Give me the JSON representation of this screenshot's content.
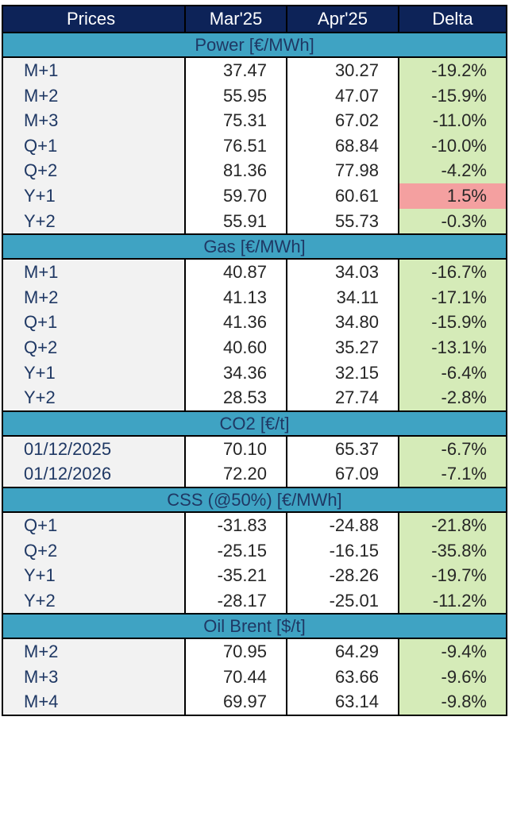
{
  "header": {
    "label": "Prices",
    "col1": "Mar'25",
    "col2": "Apr'25",
    "col3": "Delta"
  },
  "colors": {
    "header_bg": "#0d2358",
    "section_bg": "#3fa3c3",
    "negative_delta_bg": "#d5ebb8",
    "positive_delta_bg": "#f4a0a0"
  },
  "sections": [
    {
      "title": "Power [€/MWh]",
      "rows": [
        {
          "label": "M+1",
          "mar": "37.47",
          "apr": "30.27",
          "delta": "-19.2%",
          "sign": "neg"
        },
        {
          "label": "M+2",
          "mar": "55.95",
          "apr": "47.07",
          "delta": "-15.9%",
          "sign": "neg"
        },
        {
          "label": "M+3",
          "mar": "75.31",
          "apr": "67.02",
          "delta": "-11.0%",
          "sign": "neg"
        },
        {
          "label": "Q+1",
          "mar": "76.51",
          "apr": "68.84",
          "delta": "-10.0%",
          "sign": "neg"
        },
        {
          "label": "Q+2",
          "mar": "81.36",
          "apr": "77.98",
          "delta": "-4.2%",
          "sign": "neg"
        },
        {
          "label": "Y+1",
          "mar": "59.70",
          "apr": "60.61",
          "delta": "1.5%",
          "sign": "pos"
        },
        {
          "label": "Y+2",
          "mar": "55.91",
          "apr": "55.73",
          "delta": "-0.3%",
          "sign": "neg"
        }
      ]
    },
    {
      "title": "Gas [€/MWh]",
      "rows": [
        {
          "label": "M+1",
          "mar": "40.87",
          "apr": "34.03",
          "delta": "-16.7%",
          "sign": "neg"
        },
        {
          "label": "M+2",
          "mar": "41.13",
          "apr": "34.11",
          "delta": "-17.1%",
          "sign": "neg"
        },
        {
          "label": "Q+1",
          "mar": "41.36",
          "apr": "34.80",
          "delta": "-15.9%",
          "sign": "neg"
        },
        {
          "label": "Q+2",
          "mar": "40.60",
          "apr": "35.27",
          "delta": "-13.1%",
          "sign": "neg"
        },
        {
          "label": "Y+1",
          "mar": "34.36",
          "apr": "32.15",
          "delta": "-6.4%",
          "sign": "neg"
        },
        {
          "label": "Y+2",
          "mar": "28.53",
          "apr": "27.74",
          "delta": "-2.8%",
          "sign": "neg"
        }
      ]
    },
    {
      "title": "CO2 [€/t]",
      "rows": [
        {
          "label": "01/12/2025",
          "mar": "70.10",
          "apr": "65.37",
          "delta": "-6.7%",
          "sign": "neg"
        },
        {
          "label": "01/12/2026",
          "mar": "72.20",
          "apr": "67.09",
          "delta": "-7.1%",
          "sign": "neg"
        }
      ]
    },
    {
      "title": "CSS (@50%) [€/MWh]",
      "rows": [
        {
          "label": "Q+1",
          "mar": "-31.83",
          "apr": "-24.88",
          "delta": "-21.8%",
          "sign": "neg"
        },
        {
          "label": "Q+2",
          "mar": "-25.15",
          "apr": "-16.15",
          "delta": "-35.8%",
          "sign": "neg"
        },
        {
          "label": "Y+1",
          "mar": "-35.21",
          "apr": "-28.26",
          "delta": "-19.7%",
          "sign": "neg"
        },
        {
          "label": "Y+2",
          "mar": "-28.17",
          "apr": "-25.01",
          "delta": "-11.2%",
          "sign": "neg"
        }
      ]
    },
    {
      "title": "Oil Brent [$/t]",
      "rows": [
        {
          "label": "M+2",
          "mar": "70.95",
          "apr": "64.29",
          "delta": "-9.4%",
          "sign": "neg"
        },
        {
          "label": "M+3",
          "mar": "70.44",
          "apr": "63.66",
          "delta": "-9.6%",
          "sign": "neg"
        },
        {
          "label": "M+4",
          "mar": "69.97",
          "apr": "63.14",
          "delta": "-9.8%",
          "sign": "neg"
        }
      ]
    }
  ]
}
